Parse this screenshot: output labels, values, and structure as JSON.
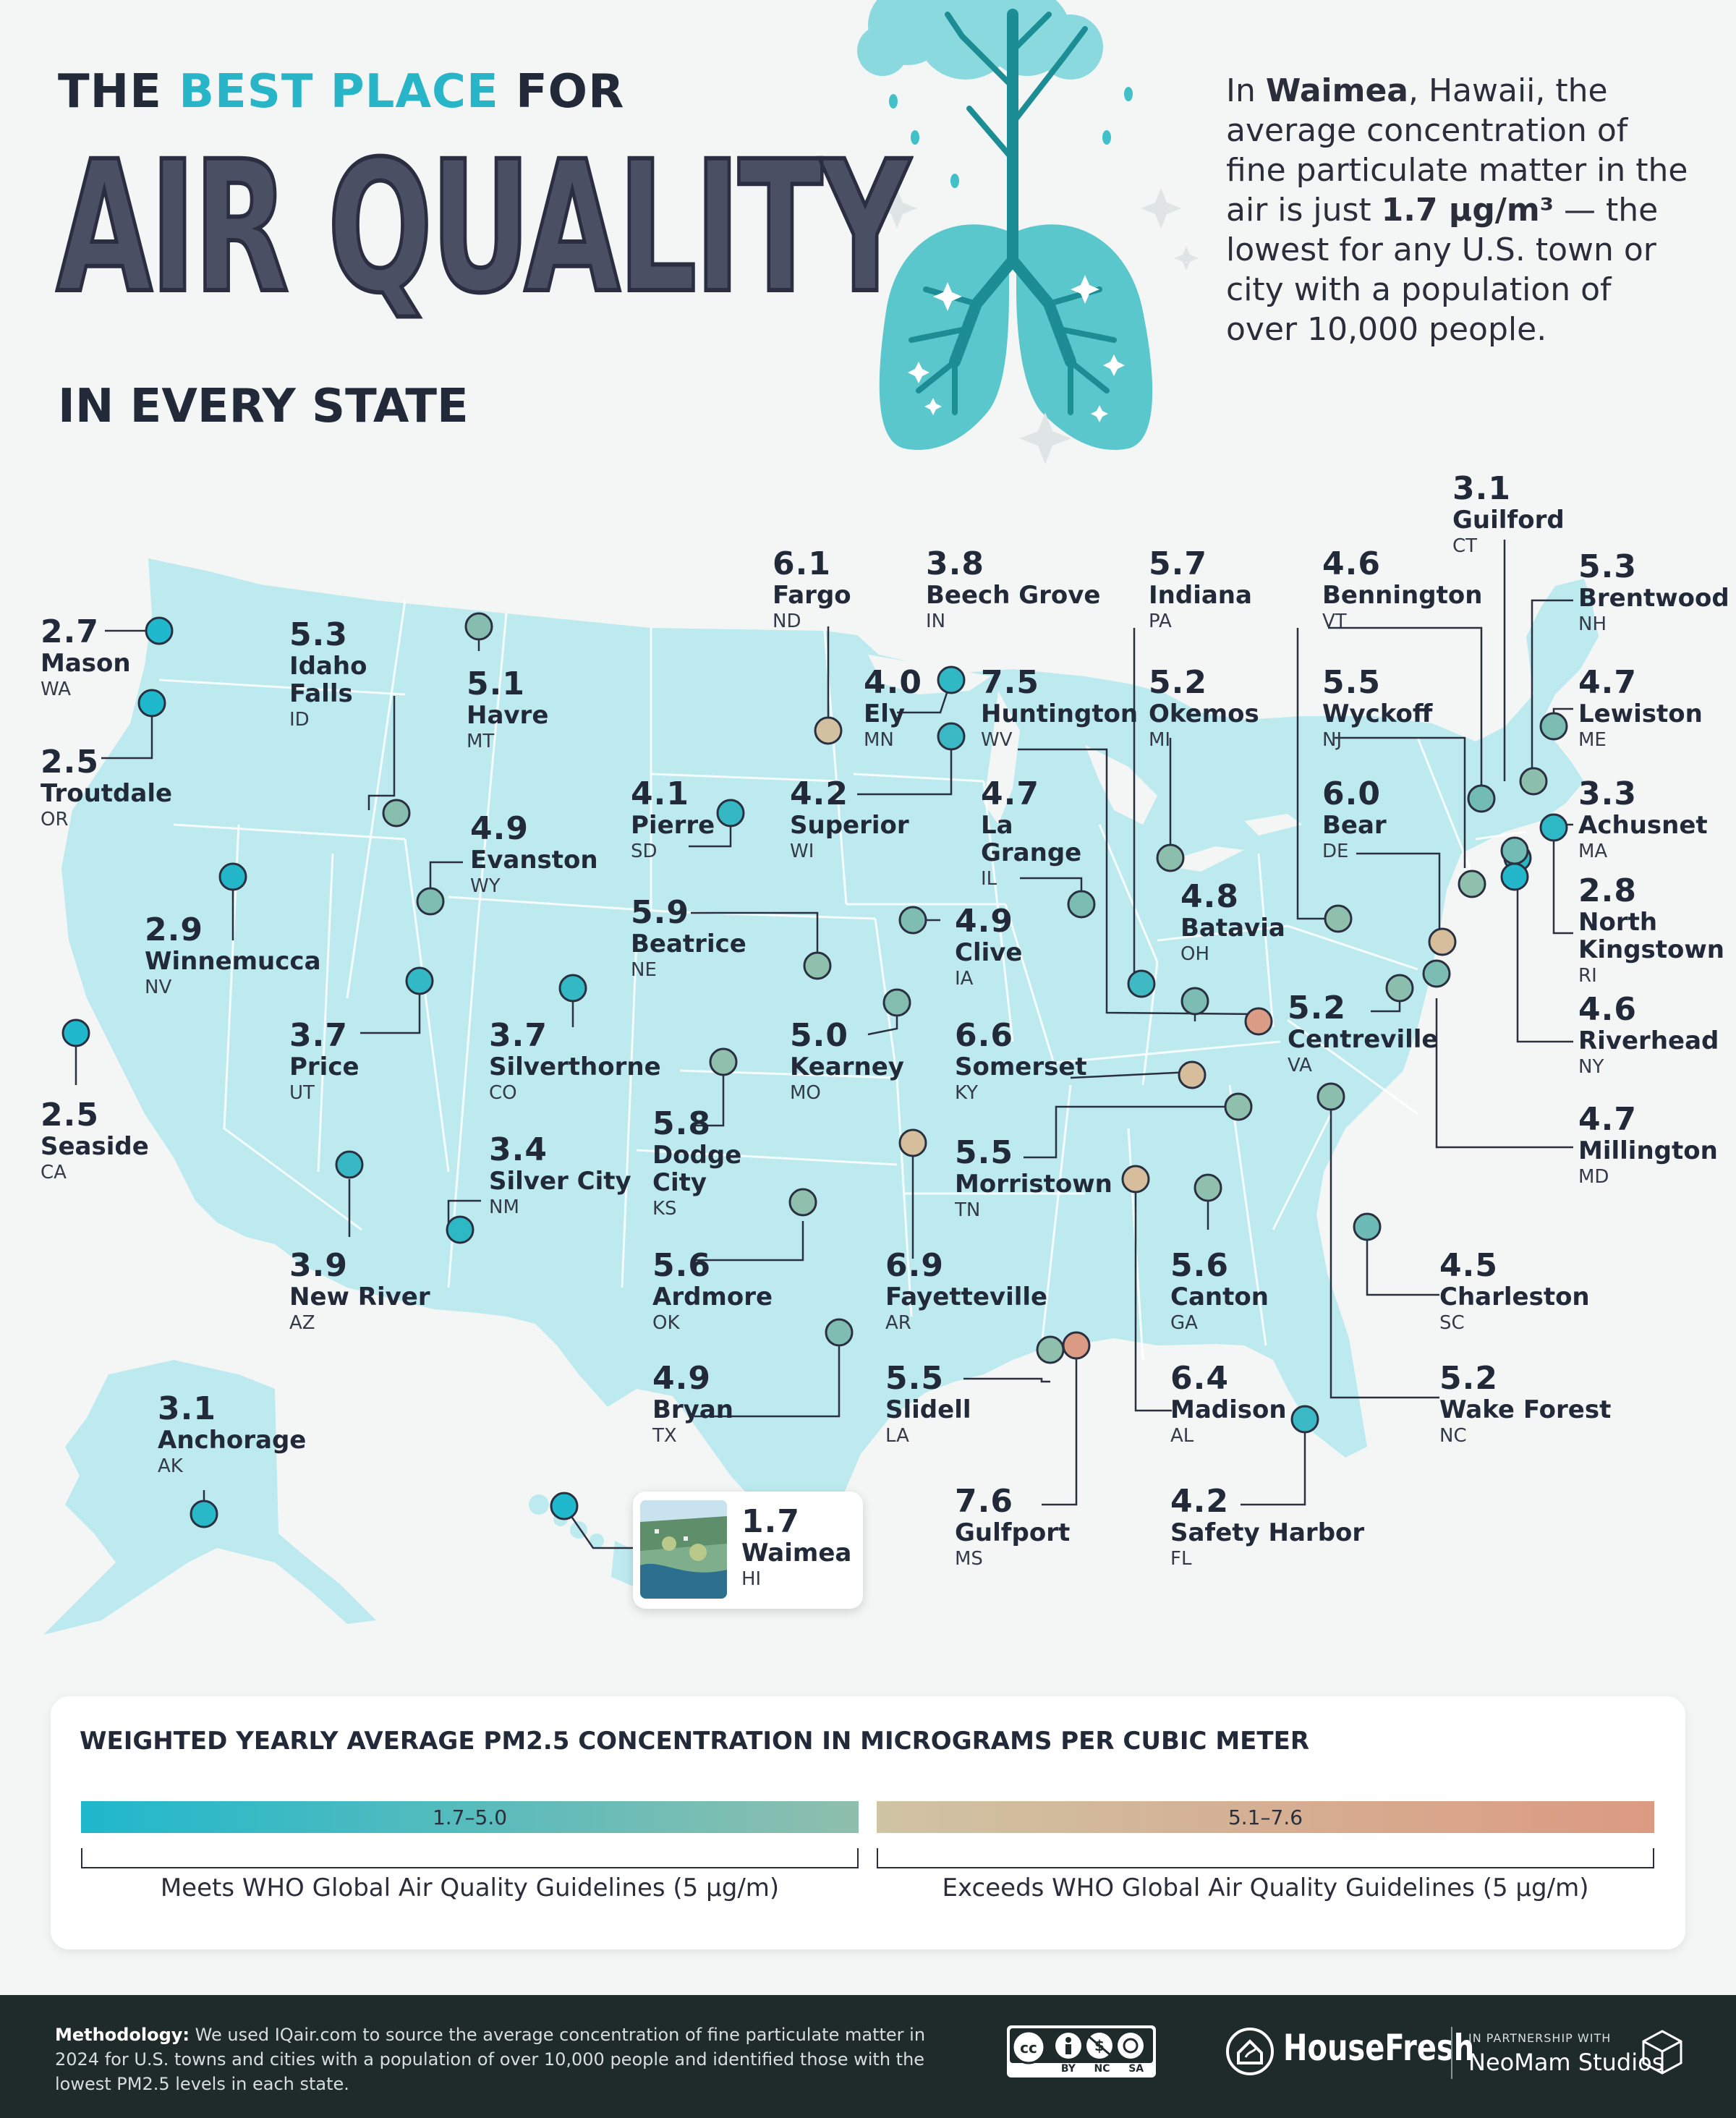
{
  "header": {
    "title_pre_1": "THE ",
    "title_pre_accent": "BEST PLACE",
    "title_pre_2": " FOR",
    "title_main": "AIR QUALITY",
    "title_post": "IN EVERY STATE",
    "intro_1": "In ",
    "intro_bold_1": "Waimea",
    "intro_2": ", Hawaii, the average concentration of fine particulate matter in the air is just ",
    "intro_bold_2": "1.7 µg/m³",
    "intro_3": " — the lowest for any U.S. town or city with a population of over 10,000 people."
  },
  "cities": [
    {
      "id": "wa",
      "value": "2.7",
      "name": "Mason",
      "state": "WA",
      "pm": 2.7
    },
    {
      "id": "or",
      "value": "2.5",
      "name": "Troutdale",
      "state": "OR",
      "pm": 2.5
    },
    {
      "id": "ca",
      "value": "2.5",
      "name": "Seaside",
      "state": "CA",
      "pm": 2.5
    },
    {
      "id": "nv",
      "value": "2.9",
      "name": "Winnemucca",
      "state": "NV",
      "pm": 2.9
    },
    {
      "id": "id",
      "value": "5.3",
      "name": "Idaho Falls",
      "state": "ID",
      "pm": 5.3
    },
    {
      "id": "mt",
      "value": "5.1",
      "name": "Havre",
      "state": "MT",
      "pm": 5.1
    },
    {
      "id": "wy",
      "value": "4.9",
      "name": "Evanston",
      "state": "WY",
      "pm": 4.9
    },
    {
      "id": "ut",
      "value": "3.7",
      "name": "Price",
      "state": "UT",
      "pm": 3.7
    },
    {
      "id": "co",
      "value": "3.7",
      "name": "Silverthorne",
      "state": "CO",
      "pm": 3.7
    },
    {
      "id": "az",
      "value": "3.9",
      "name": "New River",
      "state": "AZ",
      "pm": 3.9
    },
    {
      "id": "nm",
      "value": "3.4",
      "name": "Silver City",
      "state": "NM",
      "pm": 3.4
    },
    {
      "id": "ak",
      "value": "3.1",
      "name": "Anchorage",
      "state": "AK",
      "pm": 3.1
    },
    {
      "id": "hi",
      "value": "1.7",
      "name": "Waimea",
      "state": "HI",
      "pm": 1.7
    },
    {
      "id": "nd",
      "value": "6.1",
      "name": "Fargo",
      "state": "ND",
      "pm": 6.1
    },
    {
      "id": "sd",
      "value": "4.1",
      "name": "Pierre",
      "state": "SD",
      "pm": 4.1
    },
    {
      "id": "ne",
      "value": "5.9",
      "name": "Beatrice",
      "state": "NE",
      "pm": 5.9
    },
    {
      "id": "ks",
      "value": "5.8",
      "name": "Dodge City",
      "state": "KS",
      "pm": 5.8
    },
    {
      "id": "ok",
      "value": "5.6",
      "name": "Ardmore",
      "state": "OK",
      "pm": 5.6
    },
    {
      "id": "tx",
      "value": "4.9",
      "name": "Bryan",
      "state": "TX",
      "pm": 4.9
    },
    {
      "id": "mn",
      "value": "4.0",
      "name": "Ely",
      "state": "MN",
      "pm": 4.0
    },
    {
      "id": "wi",
      "value": "4.2",
      "name": "Superior",
      "state": "WI",
      "pm": 4.2
    },
    {
      "id": "ia",
      "value": "4.9",
      "name": "Clive",
      "state": "IA",
      "pm": 4.9
    },
    {
      "id": "mo",
      "value": "5.0",
      "name": "Kearney",
      "state": "MO",
      "pm": 5.0
    },
    {
      "id": "ar",
      "value": "6.9",
      "name": "Fayetteville",
      "state": "AR",
      "pm": 6.9
    },
    {
      "id": "la",
      "value": "5.5",
      "name": "Slidell",
      "state": "LA",
      "pm": 5.5
    },
    {
      "id": "ms",
      "value": "7.6",
      "name": "Gulfport",
      "state": "MS",
      "pm": 7.6
    },
    {
      "id": "in",
      "value": "3.8",
      "name": "Beech Grove",
      "state": "IN",
      "pm": 3.8
    },
    {
      "id": "wv",
      "value": "7.5",
      "name": "Huntington",
      "state": "WV",
      "pm": 7.5
    },
    {
      "id": "il",
      "value": "4.7",
      "name": "La Grange",
      "state": "IL",
      "pm": 4.7
    },
    {
      "id": "ky",
      "value": "6.6",
      "name": "Somerset",
      "state": "KY",
      "pm": 6.6
    },
    {
      "id": "tn",
      "value": "5.5",
      "name": "Morristown",
      "state": "TN",
      "pm": 5.5
    },
    {
      "id": "pa",
      "value": "5.7",
      "name": "Indiana",
      "state": "PA",
      "pm": 5.7
    },
    {
      "id": "mi",
      "value": "5.2",
      "name": "Okemos",
      "state": "MI",
      "pm": 5.2
    },
    {
      "id": "oh",
      "value": "4.8",
      "name": "Batavia",
      "state": "OH",
      "pm": 4.8
    },
    {
      "id": "ga",
      "value": "5.6",
      "name": "Canton",
      "state": "GA",
      "pm": 5.6
    },
    {
      "id": "al",
      "value": "6.4",
      "name": "Madison",
      "state": "AL",
      "pm": 6.4
    },
    {
      "id": "fl",
      "value": "4.2",
      "name": "Safety Harbor",
      "state": "FL",
      "pm": 4.2
    },
    {
      "id": "vt",
      "value": "4.6",
      "name": "Bennington",
      "state": "VT",
      "pm": 4.6
    },
    {
      "id": "nj",
      "value": "5.5",
      "name": "Wyckoff",
      "state": "NJ",
      "pm": 5.5
    },
    {
      "id": "de",
      "value": "6.0",
      "name": "Bear",
      "state": "DE",
      "pm": 6.0
    },
    {
      "id": "va",
      "value": "5.2",
      "name": "Centreville",
      "state": "VA",
      "pm": 5.2
    },
    {
      "id": "nc",
      "value": "5.2",
      "name": "Wake Forest",
      "state": "NC",
      "pm": 5.2
    },
    {
      "id": "sc",
      "value": "4.5",
      "name": "Charleston",
      "state": "SC",
      "pm": 4.5
    },
    {
      "id": "ct",
      "value": "3.1",
      "name": "Guilford",
      "state": "CT",
      "pm": 3.1
    },
    {
      "id": "nh",
      "value": "5.3",
      "name": "Brentwood",
      "state": "NH",
      "pm": 5.3
    },
    {
      "id": "me",
      "value": "4.7",
      "name": "Lewiston",
      "state": "ME",
      "pm": 4.7
    },
    {
      "id": "ma",
      "value": "3.3",
      "name": "Achusnet",
      "state": "MA",
      "pm": 3.3
    },
    {
      "id": "ri",
      "value": "2.8",
      "name": "North Kingstown",
      "state": "RI",
      "pm": 2.8
    },
    {
      "id": "ny",
      "value": "4.6",
      "name": "Riverhead",
      "state": "NY",
      "pm": 4.6
    },
    {
      "id": "md",
      "value": "4.7",
      "name": "Millington",
      "state": "MD",
      "pm": 4.7
    }
  ],
  "legend": {
    "title": "WEIGHTED YEARLY AVERAGE PM2.5 CONCENTRATION IN MICROGRAMS PER CUBIC METER",
    "low_range": "1.7–5.0",
    "high_range": "5.1–7.6",
    "low_label": "Meets WHO Global Air Quality Guidelines (5 µg/m)",
    "high_label": "Exceeds WHO Global Air Quality Guidelines (5 µg/m)",
    "colors": {
      "low_start": "#1fb8cc",
      "low_end": "#8fbfad",
      "high_start": "#cfc4a4",
      "high_end": "#dc9a82",
      "map_fill": "#bdeaef"
    }
  },
  "footer": {
    "method_bold": "Methodology:",
    "method_text": " We used IQair.com to source the average concentration of fine particulate matter in 2024 for U.S. towns and cities with a population of over 10,000 people and identified those with the lowest PM2.5 levels in each state.",
    "cc_labels": [
      "BY",
      "NC",
      "SA"
    ],
    "brand": "HouseFresh",
    "partner_label": "IN PARTNERSHIP WITH",
    "partner_name": "NeoMam Studios"
  }
}
